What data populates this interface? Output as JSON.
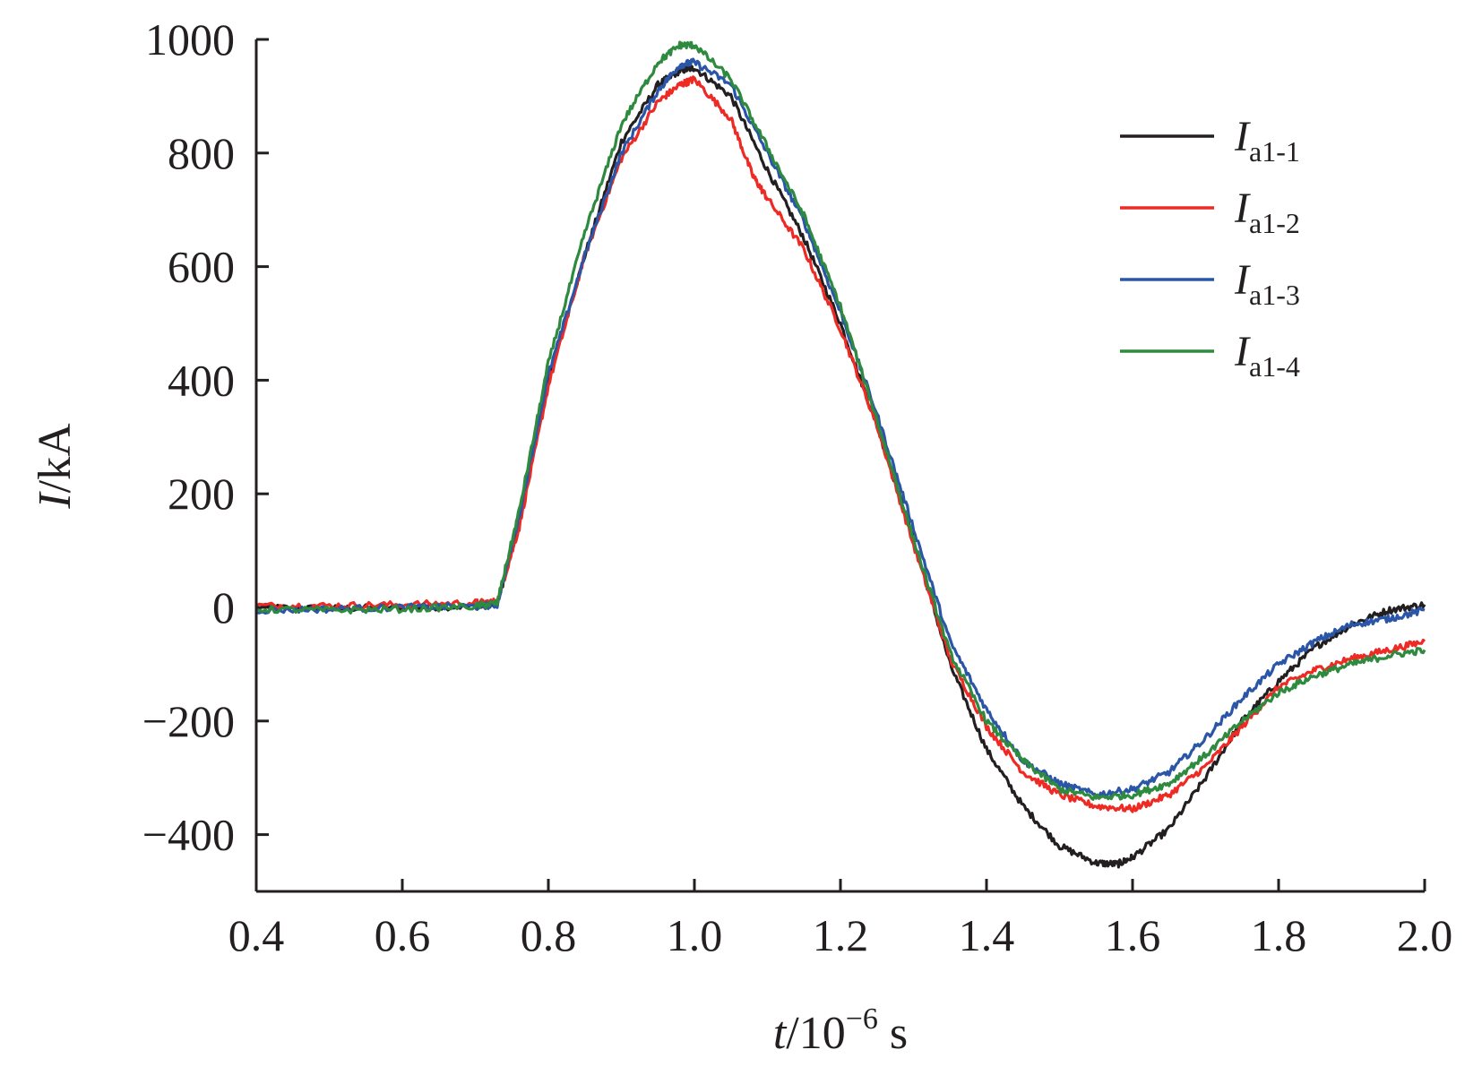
{
  "chart_data": {
    "type": "line",
    "xlabel": {
      "var": "t",
      "rest": "/10",
      "exp": "−6",
      "unit": " s"
    },
    "ylabel": {
      "var": "I",
      "rest": "/kA"
    },
    "xlim": [
      0.4,
      2.0
    ],
    "ylim": [
      -500,
      1000
    ],
    "x_ticks": [
      "0.4",
      "0.6",
      "0.8",
      "1.0",
      "1.2",
      "1.4",
      "1.6",
      "1.8",
      "2.0"
    ],
    "y_ticks": [
      "1000",
      "800",
      "600",
      "400",
      "200",
      "0",
      "−200",
      "−400"
    ],
    "grid": false,
    "legend_position": "top-right",
    "series": [
      {
        "name": "I",
        "subscript": "a1-1",
        "color": "#231f20",
        "points": [
          [
            0.4,
            0
          ],
          [
            0.5,
            -2
          ],
          [
            0.6,
            0
          ],
          [
            0.7,
            2
          ],
          [
            0.73,
            5
          ],
          [
            0.76,
            150
          ],
          [
            0.8,
            400
          ],
          [
            0.85,
            620
          ],
          [
            0.9,
            820
          ],
          [
            0.95,
            920
          ],
          [
            0.98,
            945
          ],
          [
            1.0,
            950
          ],
          [
            1.05,
            900
          ],
          [
            1.1,
            770
          ],
          [
            1.15,
            650
          ],
          [
            1.2,
            500
          ],
          [
            1.25,
            320
          ],
          [
            1.3,
            120
          ],
          [
            1.35,
            -100
          ],
          [
            1.4,
            -250
          ],
          [
            1.45,
            -350
          ],
          [
            1.5,
            -420
          ],
          [
            1.55,
            -450
          ],
          [
            1.58,
            -452
          ],
          [
            1.6,
            -440
          ],
          [
            1.65,
            -390
          ],
          [
            1.7,
            -300
          ],
          [
            1.75,
            -200
          ],
          [
            1.8,
            -130
          ],
          [
            1.85,
            -70
          ],
          [
            1.9,
            -30
          ],
          [
            1.95,
            -5
          ],
          [
            2.0,
            5
          ]
        ]
      },
      {
        "name": "I",
        "subscript": "a1-2",
        "color": "#ee2a24",
        "points": [
          [
            0.4,
            3
          ],
          [
            0.5,
            3
          ],
          [
            0.6,
            5
          ],
          [
            0.7,
            8
          ],
          [
            0.73,
            10
          ],
          [
            0.76,
            140
          ],
          [
            0.8,
            390
          ],
          [
            0.85,
            620
          ],
          [
            0.9,
            790
          ],
          [
            0.95,
            890
          ],
          [
            0.98,
            920
          ],
          [
            1.0,
            930
          ],
          [
            1.05,
            860
          ],
          [
            1.08,
            760
          ],
          [
            1.1,
            720
          ],
          [
            1.15,
            630
          ],
          [
            1.2,
            490
          ],
          [
            1.25,
            320
          ],
          [
            1.3,
            110
          ],
          [
            1.35,
            -90
          ],
          [
            1.4,
            -210
          ],
          [
            1.45,
            -290
          ],
          [
            1.5,
            -330
          ],
          [
            1.55,
            -350
          ],
          [
            1.6,
            -355
          ],
          [
            1.65,
            -330
          ],
          [
            1.7,
            -280
          ],
          [
            1.75,
            -210
          ],
          [
            1.8,
            -140
          ],
          [
            1.85,
            -110
          ],
          [
            1.9,
            -90
          ],
          [
            1.95,
            -75
          ],
          [
            2.0,
            -60
          ]
        ]
      },
      {
        "name": "I",
        "subscript": "a1-3",
        "color": "#2b56a8",
        "points": [
          [
            0.4,
            -5
          ],
          [
            0.5,
            -3
          ],
          [
            0.6,
            0
          ],
          [
            0.7,
            2
          ],
          [
            0.73,
            5
          ],
          [
            0.76,
            160
          ],
          [
            0.8,
            410
          ],
          [
            0.85,
            620
          ],
          [
            0.9,
            800
          ],
          [
            0.95,
            910
          ],
          [
            0.98,
            955
          ],
          [
            1.0,
            960
          ],
          [
            1.05,
            920
          ],
          [
            1.1,
            800
          ],
          [
            1.15,
            680
          ],
          [
            1.2,
            520
          ],
          [
            1.25,
            340
          ],
          [
            1.3,
            140
          ],
          [
            1.35,
            -60
          ],
          [
            1.4,
            -180
          ],
          [
            1.45,
            -270
          ],
          [
            1.5,
            -310
          ],
          [
            1.55,
            -330
          ],
          [
            1.6,
            -320
          ],
          [
            1.65,
            -290
          ],
          [
            1.7,
            -230
          ],
          [
            1.75,
            -160
          ],
          [
            1.8,
            -100
          ],
          [
            1.85,
            -60
          ],
          [
            1.9,
            -30
          ],
          [
            1.95,
            -20
          ],
          [
            2.0,
            -5
          ]
        ]
      },
      {
        "name": "I",
        "subscript": "a1-4",
        "color": "#2e8a3e",
        "points": [
          [
            0.4,
            -3
          ],
          [
            0.5,
            -5
          ],
          [
            0.6,
            -3
          ],
          [
            0.7,
            2
          ],
          [
            0.73,
            8
          ],
          [
            0.76,
            170
          ],
          [
            0.8,
            430
          ],
          [
            0.85,
            660
          ],
          [
            0.9,
            850
          ],
          [
            0.95,
            960
          ],
          [
            0.98,
            990
          ],
          [
            1.0,
            990
          ],
          [
            1.05,
            930
          ],
          [
            1.1,
            810
          ],
          [
            1.15,
            690
          ],
          [
            1.2,
            530
          ],
          [
            1.25,
            330
          ],
          [
            1.3,
            120
          ],
          [
            1.35,
            -80
          ],
          [
            1.4,
            -200
          ],
          [
            1.45,
            -270
          ],
          [
            1.5,
            -320
          ],
          [
            1.55,
            -335
          ],
          [
            1.6,
            -330
          ],
          [
            1.65,
            -310
          ],
          [
            1.7,
            -260
          ],
          [
            1.75,
            -200
          ],
          [
            1.8,
            -150
          ],
          [
            1.85,
            -120
          ],
          [
            1.9,
            -100
          ],
          [
            1.95,
            -85
          ],
          [
            2.0,
            -75
          ]
        ]
      }
    ]
  }
}
